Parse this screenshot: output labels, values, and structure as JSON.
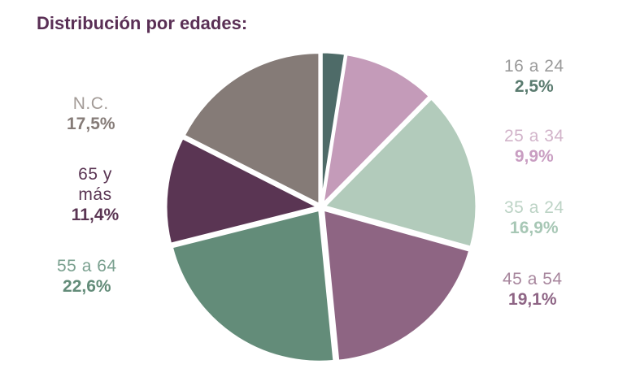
{
  "chart_data": {
    "type": "pie",
    "title": "Distribución por edades:",
    "slices": [
      {
        "label": "16 a 24",
        "value": 2.5,
        "display": "2,5%",
        "color": "#4e6b68",
        "labelColor": "#5a7b6f",
        "nameColor": "#9a9a9a"
      },
      {
        "label": "25 a 34",
        "value": 9.9,
        "display": "9,9%",
        "color": "#c49bb9",
        "labelColor": "#c99ec2",
        "nameColor": "#d2b4ca"
      },
      {
        "label": "35 a 24",
        "value": 16.9,
        "display": "16,9%",
        "color": "#b2cbbb",
        "labelColor": "#a7c7b5",
        "nameColor": "#bcd3c5"
      },
      {
        "label": "45 a 54",
        "value": 19.1,
        "display": "19,1%",
        "color": "#8e6583",
        "labelColor": "#8e6585",
        "nameColor": "#a7869d"
      },
      {
        "label": "55 a 64",
        "value": 22.6,
        "display": "22,6%",
        "color": "#638c79",
        "labelColor": "#638c79",
        "nameColor": "#7aa08f"
      },
      {
        "label": "65 y más",
        "value": 11.4,
        "display": "11,4%",
        "color": "#5a3553",
        "labelColor": "#5a3553",
        "nameColor": "#5a3553"
      },
      {
        "label": "N.C.",
        "value": 17.5,
        "display": "17,5%",
        "color": "#857b77",
        "labelColor": "#857b77",
        "nameColor": "#a29a96"
      }
    ]
  }
}
